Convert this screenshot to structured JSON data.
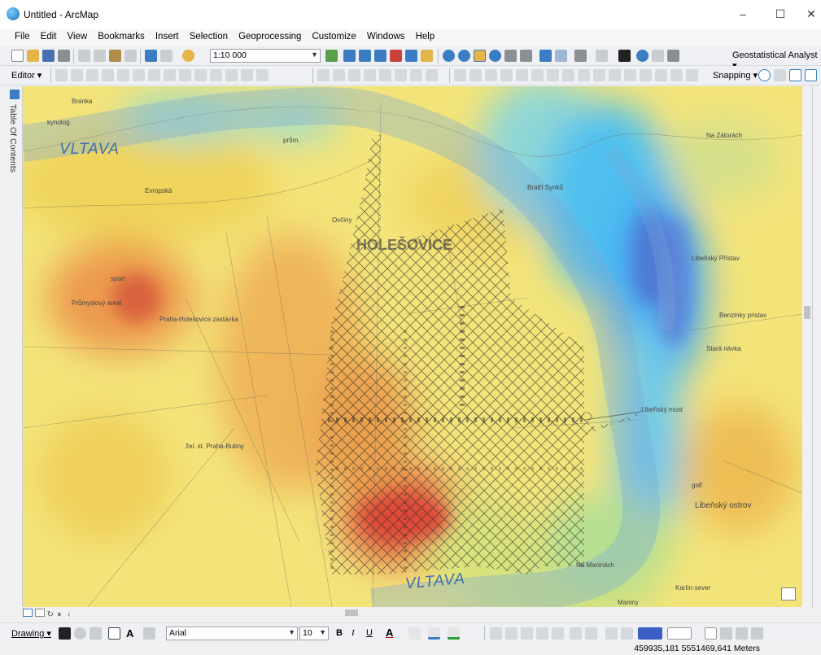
{
  "window": {
    "title": "Untitled - ArcMap",
    "minimize": "–",
    "maximize": "☐",
    "close": "✕"
  },
  "menu": [
    "File",
    "Edit",
    "View",
    "Bookmarks",
    "Insert",
    "Selection",
    "Geoprocessing",
    "Customize",
    "Windows",
    "Help"
  ],
  "toolbar": {
    "scale": "1:10 000",
    "geostatistical": "Geostatistical Analyst ▾",
    "editor": "Editor ▾",
    "snapping": "Snapping ▾"
  },
  "toc": {
    "label": "Table Of Contents"
  },
  "map": {
    "labels": {
      "vltava_top": "VLTAVA",
      "vltava_bottom": "VLTAVA",
      "holesovice": "HOLEŠOVICE",
      "libensky_ostrov": "Libeňský ostrov",
      "libensky_pristav": "Libeňský Přístav",
      "na_zatorach": "Na Zátorách",
      "karlin_sever": "Karlín-sever",
      "na_maninach": "Na Maninách",
      "maniny": "Maniny",
      "liberecky_most": "Libeňský most",
      "stara_navka": "Stará návka",
      "sport": "sport",
      "prumyslovy": "Průmyslový areál",
      "praha_bubny": "žel. st. Praha-Bubny",
      "praha_holesovice": "Praha-Holešovice zastávka",
      "kynologie": "kynolog.",
      "brana": "Bránka",
      "kvetov": "prům.",
      "golf": "golf",
      "benzinky": "Benzinky pristav",
      "gt": "Evropská",
      "bratri": "Bratří Synků",
      "lol": "Ovčiny"
    }
  },
  "drawing": {
    "label": "Drawing ▾",
    "font": "Arial",
    "font_size": "10"
  },
  "status": {
    "coords": "459935,181  5551469,641 Meters"
  }
}
